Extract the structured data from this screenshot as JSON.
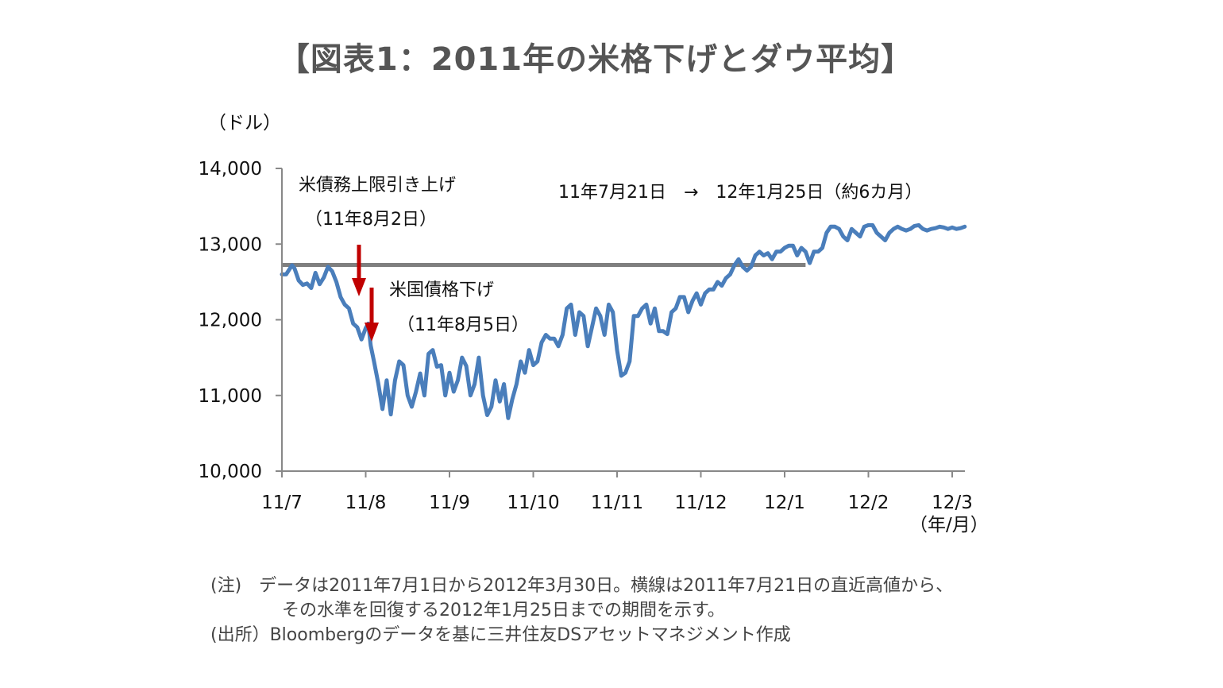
{
  "title": "【図表1：2011年の米格下げとダウ平均】",
  "notes": {
    "line1": "(注)　データは2011年7月1日から2012年3月30日。横線は2011年7月21日の直近高値から、",
    "line2": "その水準を回復する2012年1月25日までの期間を示す。",
    "line3": "(出所）Bloombergのデータを基に三井住友DSアセットマネジメント作成"
  },
  "chart_data": {
    "type": "line",
    "title": "【図表1：2011年の米格下げとダウ平均】",
    "ylabel": "（ドル）",
    "xlabel": "（年/月）",
    "ylim": [
      10000,
      14000
    ],
    "yticks": [
      "10,000",
      "11,000",
      "12,000",
      "13,000",
      "14,000"
    ],
    "xticks": [
      "11/7",
      "11/8",
      "11/9",
      "11/10",
      "11/11",
      "11/12",
      "12/1",
      "12/2",
      "12/3"
    ],
    "xrange": [
      0,
      8.15
    ],
    "colors": {
      "line": "#4a7ebb",
      "ref": "#7f7f7f",
      "arrow": "#c00000"
    },
    "series": [
      {
        "x": [
          0.0,
          0.05,
          0.12,
          0.15,
          0.2,
          0.25,
          0.3,
          0.35,
          0.4,
          0.45,
          0.5,
          0.55,
          0.6,
          0.65,
          0.7,
          0.75,
          0.8,
          0.85,
          0.9,
          0.95,
          1.0,
          1.03,
          1.06,
          1.1,
          1.15,
          1.2,
          1.25,
          1.3,
          1.35,
          1.4,
          1.45,
          1.5,
          1.55,
          1.6,
          1.65,
          1.7,
          1.75,
          1.8,
          1.85,
          1.9,
          1.95,
          2.0,
          2.05,
          2.1,
          2.15,
          2.2,
          2.25,
          2.3,
          2.35,
          2.4,
          2.45,
          2.5,
          2.55,
          2.6,
          2.65,
          2.7,
          2.75,
          2.8,
          2.85,
          2.9,
          2.95,
          3.0,
          3.05,
          3.1,
          3.15,
          3.2,
          3.25,
          3.3,
          3.35,
          3.4,
          3.45,
          3.5,
          3.55,
          3.6,
          3.65,
          3.7,
          3.75,
          3.8,
          3.85,
          3.9,
          3.95,
          4.0,
          4.05,
          4.1,
          4.15,
          4.2,
          4.25,
          4.3,
          4.35,
          4.4,
          4.45,
          4.5,
          4.55,
          4.6,
          4.65,
          4.7,
          4.75,
          4.8,
          4.85,
          4.9,
          4.95,
          5.0,
          5.05,
          5.1,
          5.15,
          5.2,
          5.25,
          5.3,
          5.35,
          5.4,
          5.45,
          5.5,
          5.55,
          5.6,
          5.65,
          5.7,
          5.75,
          5.8,
          5.85,
          5.9,
          5.95,
          6.0,
          6.05,
          6.1,
          6.15,
          6.2,
          6.25,
          6.3,
          6.35,
          6.4,
          6.45,
          6.5,
          6.55,
          6.6,
          6.65,
          6.7,
          6.75,
          6.8,
          6.85,
          6.9,
          6.95,
          7.0,
          7.05,
          7.1,
          7.15,
          7.2,
          7.25,
          7.3,
          7.35,
          7.4,
          7.45,
          7.5,
          7.55,
          7.6,
          7.65,
          7.7,
          7.75,
          7.8,
          7.85,
          7.9,
          7.95,
          8.0,
          8.05,
          8.1,
          8.15
        ],
        "y": [
          12600,
          12600,
          12720,
          12680,
          12520,
          12460,
          12480,
          12420,
          12620,
          12470,
          12560,
          12700,
          12640,
          12500,
          12300,
          12200,
          12150,
          11950,
          11900,
          11740,
          11890,
          11950,
          11660,
          11440,
          11160,
          10820,
          11200,
          10750,
          11200,
          11450,
          11400,
          11000,
          10850,
          11050,
          11290,
          11000,
          11550,
          11600,
          11380,
          11400,
          11000,
          11300,
          11050,
          11200,
          11500,
          11390,
          11000,
          11150,
          11500,
          11000,
          10740,
          10850,
          11200,
          10920,
          11150,
          10700,
          10950,
          11150,
          11450,
          11300,
          11600,
          11400,
          11450,
          11700,
          11800,
          11750,
          11750,
          11650,
          11800,
          12150,
          12200,
          11800,
          12100,
          12050,
          11650,
          11900,
          12150,
          12050,
          11800,
          12200,
          12100,
          11600,
          11260,
          11300,
          11450,
          12050,
          12050,
          12150,
          12200,
          11950,
          12150,
          11850,
          11850,
          11810,
          12100,
          12150,
          12300,
          12300,
          12100,
          12250,
          12350,
          12200,
          12350,
          12400,
          12400,
          12500,
          12450,
          12550,
          12600,
          12720,
          12800,
          12700,
          12650,
          12700,
          12850,
          12900,
          12850,
          12880,
          12800,
          12900,
          12900,
          12950,
          12980,
          12980,
          12850,
          12950,
          12900,
          12750,
          12900,
          12900,
          12950,
          13150,
          13230,
          13230,
          13200,
          13100,
          13050,
          13200,
          13150,
          13100,
          13230,
          13250,
          13250,
          13150,
          13100,
          13050,
          13150,
          13200,
          13230,
          13200,
          13180,
          13200,
          13240,
          13250,
          13200,
          13180,
          13200,
          13210,
          13230,
          13220,
          13200,
          13220,
          13200,
          13210,
          13230
        ]
      }
    ],
    "reference_line": {
      "y": 12724,
      "x_start": 0,
      "x_end": 6.25
    },
    "annotations": [
      {
        "text": "米債務上限引き上げ",
        "text2": "（11年8月2日）"
      },
      {
        "text": "米国債格下げ",
        "text2": "（11年8月5日）"
      },
      {
        "text": "11年7月21日　→　12年1月25日（約6カ月）"
      }
    ]
  }
}
